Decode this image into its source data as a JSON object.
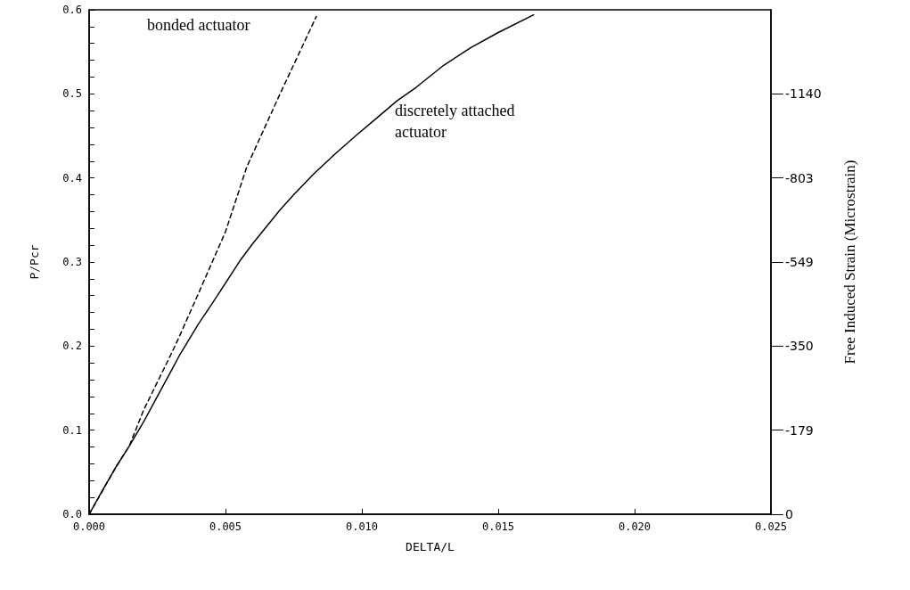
{
  "chart_data": {
    "type": "line",
    "xlabel": "DELTA/L",
    "ylabel": "P/Pcr",
    "y2label": "Free Induced Strain (Microstrain)",
    "series": [
      {
        "color": "#000000",
        "line_style": "dashed",
        "x": [
          0,
          0.001,
          0.00147,
          0.002,
          0.003,
          0.00333,
          0.004,
          0.005,
          0.00578,
          0.007,
          0.00833
        ],
        "values": [
          0,
          0.057,
          0.081,
          0.124,
          0.19,
          0.213,
          0.262,
          0.336,
          0.413,
          0.5,
          0.592
        ]
      },
      {
        "color": "#000000",
        "line_style": "solid",
        "x": [
          0,
          0.0005,
          0.001,
          0.00147,
          0.002,
          0.0025,
          0.003,
          0.00333,
          0.004,
          0.0045,
          0.005,
          0.00552,
          0.006,
          0.007,
          0.0075,
          0.00824,
          0.009,
          0.00977,
          0.0105,
          0.0113,
          0.012,
          0.013,
          0.014,
          0.015,
          0.0163
        ],
        "values": [
          0,
          0.029,
          0.057,
          0.081,
          0.11,
          0.14,
          0.17,
          0.19,
          0.226,
          0.25,
          0.275,
          0.301,
          0.322,
          0.362,
          0.38,
          0.405,
          0.428,
          0.45,
          0.47,
          0.492,
          0.508,
          0.534,
          0.555,
          0.573,
          0.594
        ]
      }
    ],
    "annotations": [
      "bonded actuator",
      "discretely attached actuator"
    ],
    "xlim": [
      0,
      0.025
    ],
    "xticks": [
      {
        "value": 0,
        "label": "0.000"
      },
      {
        "value": 0.005,
        "label": "0.005"
      },
      {
        "value": 0.01,
        "label": "0.010"
      },
      {
        "value": 0.015,
        "label": "0.015"
      },
      {
        "value": 0.02,
        "label": "0.020"
      },
      {
        "value": 0.025,
        "label": "0.025"
      }
    ],
    "ylim": [
      0,
      0.6
    ],
    "yticks": [
      {
        "value": 0,
        "label": "0.0"
      },
      {
        "value": 0.02,
        "label": null
      },
      {
        "value": 0.04,
        "label": null
      },
      {
        "value": 0.06,
        "label": null
      },
      {
        "value": 0.08,
        "label": null
      },
      {
        "value": 0.1,
        "label": "0.1"
      },
      {
        "value": 0.12,
        "label": null
      },
      {
        "value": 0.14,
        "label": null
      },
      {
        "value": 0.16,
        "label": null
      },
      {
        "value": 0.18,
        "label": null
      },
      {
        "value": 0.2,
        "label": "0.2"
      },
      {
        "value": 0.22,
        "label": null
      },
      {
        "value": 0.24,
        "label": null
      },
      {
        "value": 0.26,
        "label": null
      },
      {
        "value": 0.28,
        "label": null
      },
      {
        "value": 0.3,
        "label": "0.3"
      },
      {
        "value": 0.32,
        "label": null
      },
      {
        "value": 0.34,
        "label": null
      },
      {
        "value": 0.36,
        "label": null
      },
      {
        "value": 0.38,
        "label": null
      },
      {
        "value": 0.4,
        "label": "0.4"
      },
      {
        "value": 0.42,
        "label": null
      },
      {
        "value": 0.44,
        "label": null
      },
      {
        "value": 0.46,
        "label": null
      },
      {
        "value": 0.48,
        "label": null
      },
      {
        "value": 0.5,
        "label": "0.5"
      },
      {
        "value": 0.52,
        "label": null
      },
      {
        "value": 0.54,
        "label": null
      },
      {
        "value": 0.56,
        "label": null
      },
      {
        "value": 0.58,
        "label": null
      },
      {
        "value": 0.6,
        "label": "0.6"
      }
    ],
    "y2_categories": [
      null,
      "-1140",
      "-803",
      "-549",
      "-350",
      "-179",
      "0"
    ],
    "grid": false,
    "marker": "none"
  }
}
